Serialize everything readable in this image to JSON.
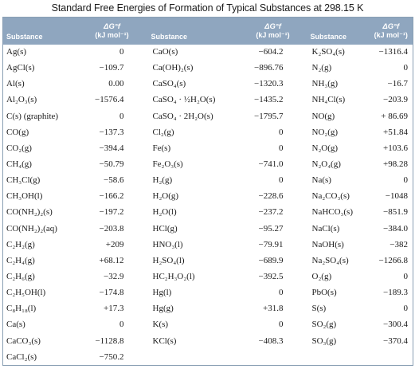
{
  "title": "Standard Free Energies of Formation of Typical Substances at 298.15 K",
  "header": {
    "substance": "Substance",
    "dg_symbol": "ΔG°f",
    "dg_unit": "(kJ mol⁻¹)"
  },
  "rows": [
    {
      "s1": "Ag(s)",
      "v1": "0",
      "s2": "CaO(s)",
      "v2": "−604.2",
      "s3": "K₂SO₄(s)",
      "v3": "−1316.4"
    },
    {
      "s1": "AgCl(s)",
      "v1": "−109.7",
      "s2": "Ca(OH)₂(s)",
      "v2": "−896.76",
      "s3": "N₂(g)",
      "v3": "0"
    },
    {
      "s1": "Al(s)",
      "v1": "0.00",
      "s2": "CaSO₄(s)",
      "v2": "−1320.3",
      "s3": "NH₃(g)",
      "v3": "−16.7"
    },
    {
      "s1": "Al₂O₃(s)",
      "v1": "−1576.4",
      "s2": "CaSO₄ · ½H₂O(s)",
      "v2": "−1435.2",
      "s3": "NH₄Cl(s)",
      "v3": "−203.9"
    },
    {
      "s1": "C(s) (graphite)",
      "v1": "0",
      "s2": "CaSO₄ · 2H₂O(s)",
      "v2": "−1795.7",
      "s3": "NO(g)",
      "v3": "+ 86.69"
    },
    {
      "s1": "CO(g)",
      "v1": "−137.3",
      "s2": "Cl₂(g)",
      "v2": "0",
      "s3": "NO₂(g)",
      "v3": "+51.84"
    },
    {
      "s1": "CO₂(g)",
      "v1": "−394.4",
      "s2": "Fe(s)",
      "v2": "0",
      "s3": "N₂O(g)",
      "v3": "+103.6"
    },
    {
      "s1": "CH₄(g)",
      "v1": "−50.79",
      "s2": "Fe₂O₃(s)",
      "v2": "−741.0",
      "s3": "N₂O₄(g)",
      "v3": "+98.28"
    },
    {
      "s1": "CH₃Cl(g)",
      "v1": "−58.6",
      "s2": "H₂(g)",
      "v2": "0",
      "s3": "Na(s)",
      "v3": "0"
    },
    {
      "s1": "CH₃OH(l)",
      "v1": "−166.2",
      "s2": "H₂O(g)",
      "v2": "−228.6",
      "s3": "Na₂CO₃(s)",
      "v3": "−1048"
    },
    {
      "s1": "CO(NH₂)₂(s)",
      "v1": "−197.2",
      "s2": "H₂O(l)",
      "v2": "−237.2",
      "s3": "NaHCO₃(s)",
      "v3": "−851.9"
    },
    {
      "s1": "CO(NH₂)₂(aq)",
      "v1": "−203.8",
      "s2": "HCl(g)",
      "v2": "−95.27",
      "s3": "NaCl(s)",
      "v3": "−384.0"
    },
    {
      "s1": "C₂H₂(g)",
      "v1": "+209",
      "s2": "HNO₃(l)",
      "v2": "−79.91",
      "s3": "NaOH(s)",
      "v3": "−382"
    },
    {
      "s1": "C₂H₄(g)",
      "v1": "+68.12",
      "s2": "H₂SO₄(l)",
      "v2": "−689.9",
      "s3": "Na₂SO₄(s)",
      "v3": "−1266.8"
    },
    {
      "s1": "C₂H₆(g)",
      "v1": "−32.9",
      "s2": "HC₂H₃O₂(l)",
      "v2": "−392.5",
      "s3": "O₂(g)",
      "v3": "0"
    },
    {
      "s1": "C₂H₅OH(l)",
      "v1": "−174.8",
      "s2": "Hg(l)",
      "v2": "0",
      "s3": "PbO(s)",
      "v3": "−189.3"
    },
    {
      "s1": "C₈H₁₈(l)",
      "v1": "+17.3",
      "s2": "Hg(g)",
      "v2": "+31.8",
      "s3": "S(s)",
      "v3": "0"
    },
    {
      "s1": "Ca(s)",
      "v1": "0",
      "s2": "K(s)",
      "v2": "0",
      "s3": "SO₂(g)",
      "v3": "−300.4"
    },
    {
      "s1": "CaCO₃(s)",
      "v1": "−1128.8",
      "s2": "KCl(s)",
      "v2": "−408.3",
      "s3": "SO₃(g)",
      "v3": "−370.4"
    },
    {
      "s1": "CaCl₂(s)",
      "v1": "−750.2",
      "s2": "",
      "v2": "",
      "s3": "",
      "v3": ""
    }
  ]
}
